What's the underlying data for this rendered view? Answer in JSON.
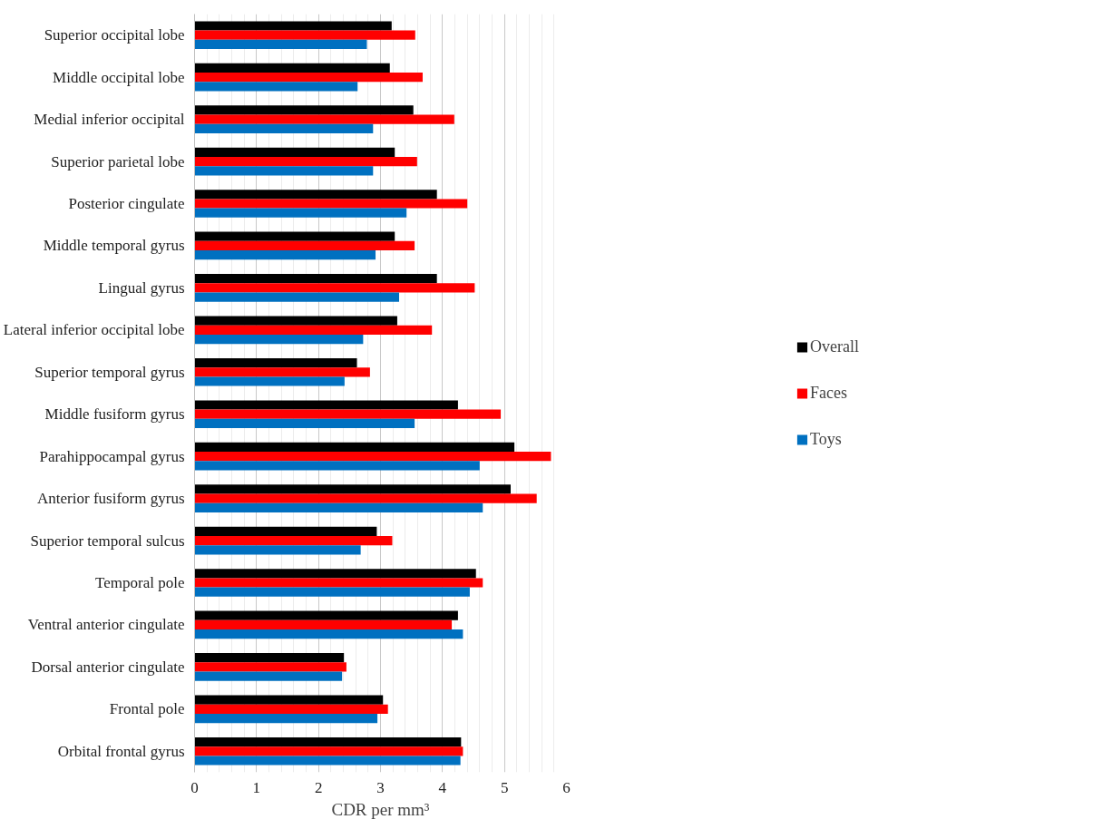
{
  "chart_data": {
    "type": "bar",
    "orientation": "horizontal",
    "xlabel": "CDR per mm³",
    "categories": [
      "Superior occipital lobe",
      "Middle occipital lobe",
      "Medial inferior occipital",
      "Superior parietal lobe",
      "Posterior cingulate",
      "Middle temporal gyrus",
      "Lingual gyrus",
      "Lateral inferior occipital lobe",
      "Superior temporal gyrus",
      "Middle fusiform gyrus",
      "Parahippocampal gyrus",
      "Anterior fusiform gyrus",
      "Superior temporal sulcus",
      "Temporal pole",
      "Ventral anterior cingulate",
      "Dorsal anterior cingulate",
      "Frontal pole",
      "Orbital frontal gyrus"
    ],
    "series": [
      {
        "name": "Overall",
        "color": "#000000",
        "values": [
          3.18,
          3.15,
          3.53,
          3.23,
          3.91,
          3.23,
          3.91,
          3.27,
          2.62,
          4.25,
          5.16,
          5.1,
          2.94,
          4.54,
          4.25,
          2.41,
          3.04,
          4.3
        ]
      },
      {
        "name": "Faces",
        "color": "#ff0000",
        "values": [
          3.56,
          3.68,
          4.19,
          3.59,
          4.4,
          3.55,
          4.52,
          3.83,
          2.83,
          4.94,
          5.75,
          5.52,
          3.19,
          4.65,
          4.15,
          2.45,
          3.12,
          4.33
        ]
      },
      {
        "name": "Toys",
        "color": "#0070c0",
        "values": [
          2.78,
          2.63,
          2.88,
          2.88,
          3.42,
          2.92,
          3.3,
          2.72,
          2.42,
          3.55,
          4.6,
          4.65,
          2.68,
          4.44,
          4.33,
          2.38,
          2.95,
          4.29
        ]
      }
    ],
    "xlim": [
      0,
      6
    ],
    "xticks": [
      0,
      1,
      2,
      3,
      4,
      5,
      6
    ],
    "grid": "x",
    "legend": "right"
  }
}
